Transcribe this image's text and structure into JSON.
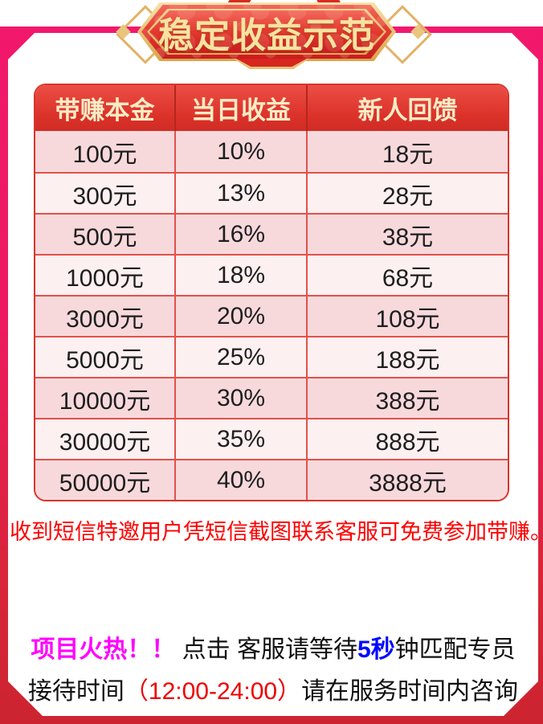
{
  "banner": {
    "title": "稳定收益示范"
  },
  "table": {
    "headers": [
      "带赚本金",
      "当日收益",
      "新人回馈"
    ],
    "rows": [
      [
        "100元",
        "10%",
        "18元"
      ],
      [
        "300元",
        "13%",
        "28元"
      ],
      [
        "500元",
        "16%",
        "38元"
      ],
      [
        "1000元",
        "18%",
        "68元"
      ],
      [
        "3000元",
        "20%",
        "108元"
      ],
      [
        "5000元",
        "25%",
        "188元"
      ],
      [
        "10000元",
        "30%",
        "388元"
      ],
      [
        "30000元",
        "35%",
        "888元"
      ],
      [
        "50000元",
        "40%",
        "3888元"
      ]
    ]
  },
  "notice": "收到短信特邀用户凭短信截图联系客服可免费参加带赚。",
  "footer": {
    "line1": {
      "hot": "项目火热！！",
      "mid": " 点击 客服请等待",
      "seconds": "5秒",
      "tail": "钟匹配专员"
    },
    "line2": {
      "pre": "接待时间",
      "time": "（12:00-24:00）",
      "post": "请在服务时间内咨询"
    }
  },
  "colors": {
    "accent_pink": "#F2186E",
    "accent_red": "#CC2430",
    "header_red": "#DA3129",
    "header_text": "#F9ECC5",
    "row_dark": "#F7D9DC",
    "row_light": "#FDF0F1",
    "gold": "#F6E3A1",
    "magenta": "#FF00FF",
    "blue": "#0009FF",
    "notice_red": "#FF0000"
  }
}
